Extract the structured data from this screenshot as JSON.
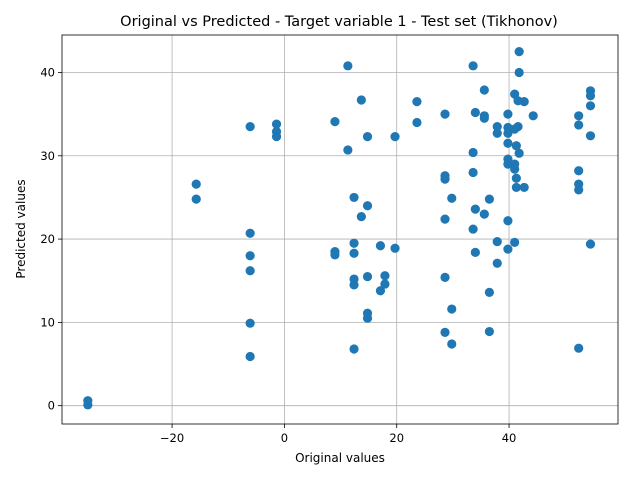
{
  "chart_data": {
    "type": "scatter",
    "title": "Original vs Predicted - Target variable 1 - Test set (Tikhonov)",
    "xlabel": "Original values",
    "ylabel": "Predicted values",
    "xlim": [
      -39.6,
      59.4
    ],
    "ylim": [
      -2.2,
      44.5
    ],
    "x_ticks": [
      -20,
      0,
      20,
      40
    ],
    "y_ticks": [
      0,
      10,
      20,
      30,
      40
    ],
    "grid": true,
    "marker_color": "#1f77b4",
    "points": [
      [
        -35.0,
        0.1
      ],
      [
        -35.0,
        0.6
      ],
      [
        -15.7,
        26.6
      ],
      [
        -15.7,
        24.8
      ],
      [
        -6.1,
        33.5
      ],
      [
        -6.1,
        20.7
      ],
      [
        -6.1,
        18.0
      ],
      [
        -6.1,
        16.2
      ],
      [
        -6.1,
        9.9
      ],
      [
        -6.1,
        5.9
      ],
      [
        -1.4,
        33.8
      ],
      [
        -1.4,
        32.9
      ],
      [
        -1.4,
        32.3
      ],
      [
        9.0,
        34.1
      ],
      [
        9.0,
        18.5
      ],
      [
        9.0,
        18.1
      ],
      [
        11.3,
        40.8
      ],
      [
        11.3,
        30.7
      ],
      [
        12.4,
        25.0
      ],
      [
        12.4,
        19.5
      ],
      [
        12.4,
        18.3
      ],
      [
        12.4,
        15.2
      ],
      [
        12.4,
        14.5
      ],
      [
        12.4,
        6.8
      ],
      [
        13.7,
        36.7
      ],
      [
        13.7,
        22.7
      ],
      [
        14.8,
        32.3
      ],
      [
        14.8,
        24.0
      ],
      [
        14.8,
        15.5
      ],
      [
        14.8,
        11.1
      ],
      [
        14.8,
        10.5
      ],
      [
        17.1,
        19.2
      ],
      [
        17.1,
        13.8
      ],
      [
        17.9,
        15.6
      ],
      [
        17.9,
        14.6
      ],
      [
        19.7,
        32.3
      ],
      [
        19.7,
        18.9
      ],
      [
        23.6,
        36.5
      ],
      [
        23.6,
        34.0
      ],
      [
        28.6,
        35.0
      ],
      [
        28.6,
        27.6
      ],
      [
        28.6,
        27.2
      ],
      [
        28.6,
        22.4
      ],
      [
        28.6,
        15.4
      ],
      [
        28.6,
        8.8
      ],
      [
        29.8,
        24.9
      ],
      [
        29.8,
        11.6
      ],
      [
        29.8,
        7.4
      ],
      [
        33.6,
        40.8
      ],
      [
        33.6,
        30.4
      ],
      [
        33.6,
        28.0
      ],
      [
        33.6,
        21.2
      ],
      [
        34.0,
        35.2
      ],
      [
        34.0,
        23.6
      ],
      [
        34.0,
        18.4
      ],
      [
        35.6,
        37.9
      ],
      [
        35.6,
        34.8
      ],
      [
        35.6,
        34.5
      ],
      [
        35.6,
        23.0
      ],
      [
        36.5,
        24.8
      ],
      [
        36.5,
        13.6
      ],
      [
        36.5,
        8.9
      ],
      [
        37.9,
        33.5
      ],
      [
        37.9,
        32.7
      ],
      [
        37.9,
        19.7
      ],
      [
        37.9,
        17.1
      ],
      [
        39.8,
        35.0
      ],
      [
        39.8,
        33.4
      ],
      [
        39.8,
        32.7
      ],
      [
        39.8,
        31.5
      ],
      [
        39.8,
        29.6
      ],
      [
        39.8,
        29.0
      ],
      [
        39.8,
        22.2
      ],
      [
        39.8,
        18.8
      ],
      [
        41.0,
        37.4
      ],
      [
        41.0,
        33.2
      ],
      [
        41.0,
        29.0
      ],
      [
        41.0,
        28.4
      ],
      [
        41.0,
        19.6
      ],
      [
        41.3,
        31.2
      ],
      [
        41.3,
        27.3
      ],
      [
        41.3,
        26.2
      ],
      [
        41.6,
        36.6
      ],
      [
        41.6,
        33.5
      ],
      [
        41.8,
        42.5
      ],
      [
        41.8,
        40.0
      ],
      [
        41.8,
        30.3
      ],
      [
        42.7,
        36.5
      ],
      [
        42.7,
        26.2
      ],
      [
        44.3,
        34.8
      ],
      [
        52.4,
        34.8
      ],
      [
        52.4,
        33.7
      ],
      [
        52.4,
        28.2
      ],
      [
        52.4,
        26.6
      ],
      [
        52.4,
        25.9
      ],
      [
        52.4,
        6.9
      ],
      [
        54.5,
        37.8
      ],
      [
        54.5,
        37.2
      ],
      [
        54.5,
        36.0
      ],
      [
        54.5,
        32.4
      ],
      [
        54.5,
        19.4
      ]
    ]
  }
}
